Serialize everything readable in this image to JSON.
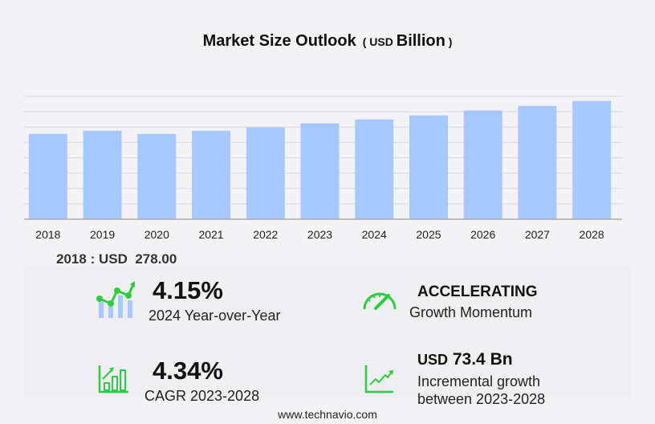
{
  "header": {
    "title": "Market Size Outlook",
    "unit_prefix": "USD",
    "unit": "Billion"
  },
  "chart_data": {
    "type": "bar",
    "title": "Market Size Outlook (USD Billion)",
    "categories": [
      "2018",
      "2019",
      "2020",
      "2021",
      "2022",
      "2023",
      "2024",
      "2025",
      "2026",
      "2027",
      "2028"
    ],
    "values": [
      278,
      288,
      278,
      288,
      299,
      312,
      325,
      338,
      354,
      369,
      385
    ],
    "ylim": [
      0,
      400
    ],
    "grid": true,
    "color": "#a6c8ff"
  },
  "base_label": {
    "year": "2018",
    "sep": ":",
    "currency": "USD",
    "value": "278.00"
  },
  "kpis": {
    "yoy": {
      "value": "4.15%",
      "label": "2024 Year-over-Year"
    },
    "momentum": {
      "value": "ACCELERATING",
      "label": "Growth Momentum"
    },
    "cagr": {
      "value": "4.34%",
      "label": "CAGR 2023-2028"
    },
    "increment": {
      "prefix": "USD",
      "value": "73.4 Bn",
      "label1": "Incremental growth",
      "label2": "between 2023-2028"
    }
  },
  "colors": {
    "green": "#2ecc40",
    "bar": "#a6c8ff",
    "icon_bar": "#a6c8ff"
  },
  "footer": "www.technavio.com"
}
